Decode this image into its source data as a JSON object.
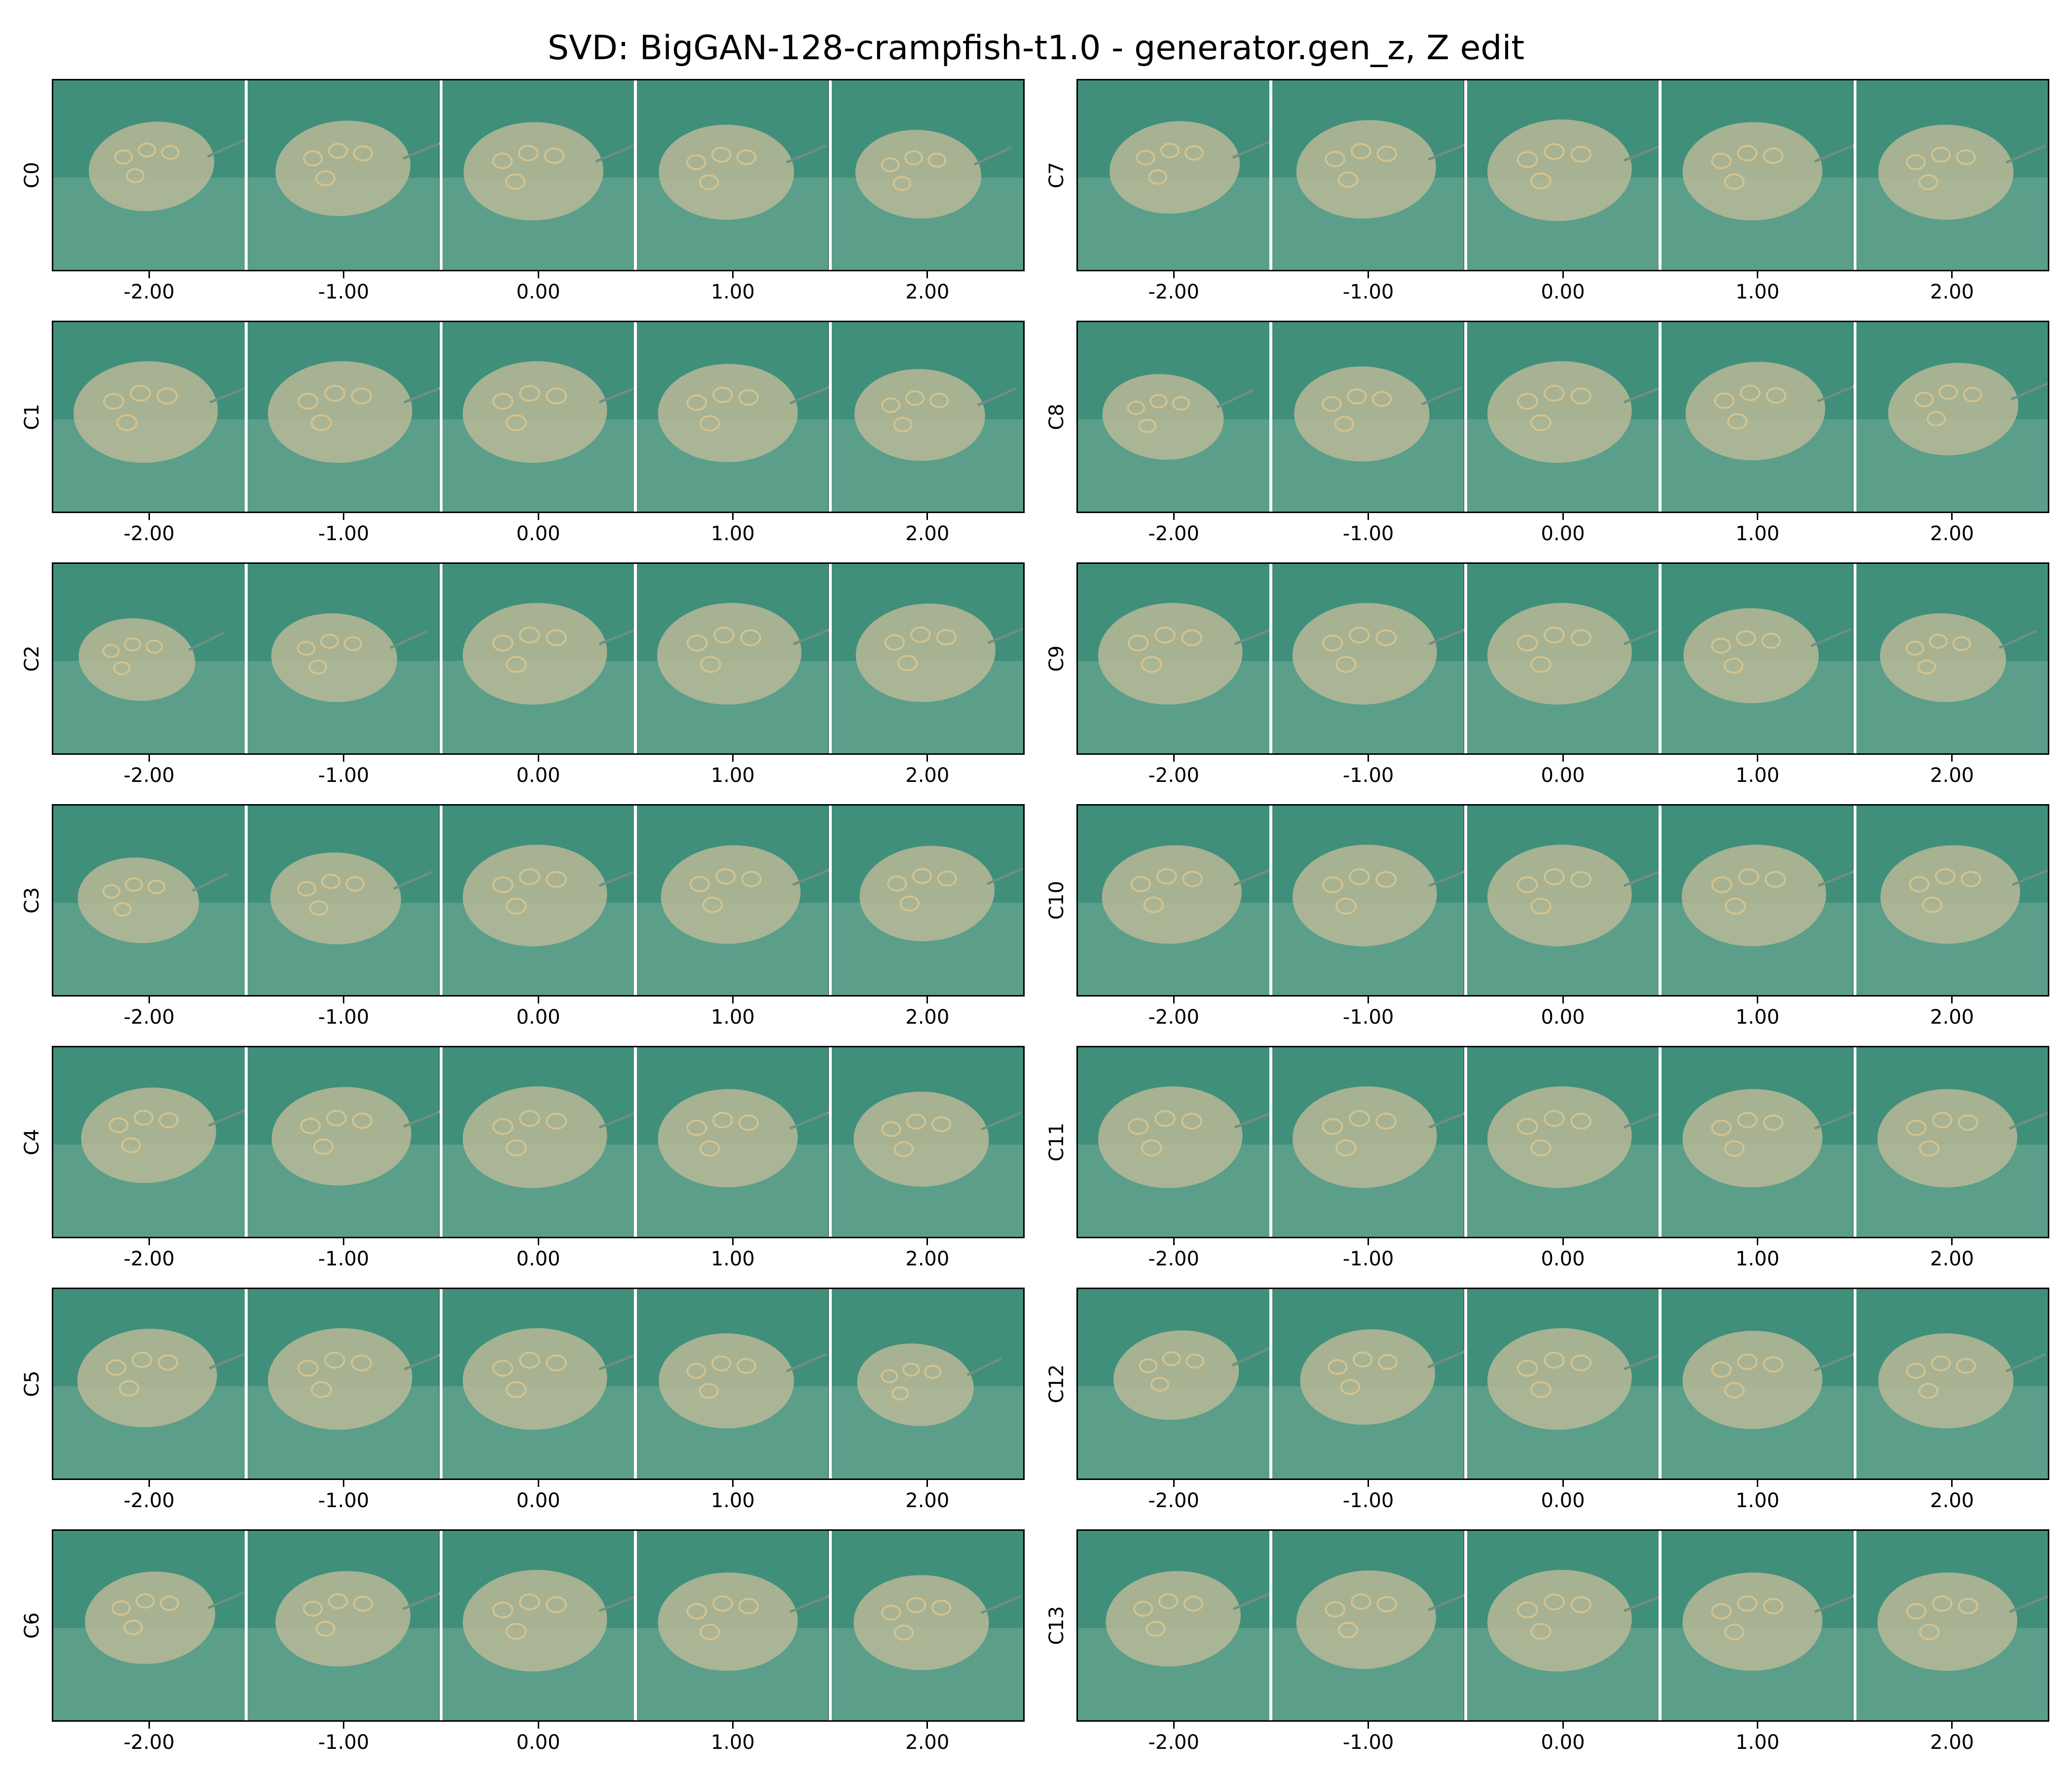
{
  "title": "SVD: BigGAN-128-crampfish-t1.0 - generator.gen_z, Z edit",
  "colors": {
    "water": "#3f8f7b",
    "sand": "#8fb9a6",
    "fish": "#b9b896",
    "spot": "#d8c48e"
  },
  "x_tick_labels": [
    "-2.00",
    "-1.00",
    "0.00",
    "1.00",
    "2.00"
  ],
  "columns": [
    {
      "rows": [
        {
          "label": "C0",
          "variant": [
            0.0,
            0.2,
            0.5,
            0.6,
            0.8
          ]
        },
        {
          "label": "C1",
          "variant": [
            0.4,
            0.4,
            0.4,
            0.5,
            0.7
          ]
        },
        {
          "label": "C2",
          "variant": [
            1.0,
            0.8,
            0.4,
            0.4,
            0.3
          ]
        },
        {
          "label": "C3",
          "variant": [
            0.9,
            0.7,
            0.4,
            0.3,
            0.2
          ]
        },
        {
          "label": "C4",
          "variant": [
            0.2,
            0.3,
            0.4,
            0.5,
            0.6
          ]
        },
        {
          "label": "C5",
          "variant": [
            0.3,
            0.4,
            0.4,
            0.6,
            1.0
          ]
        },
        {
          "label": "C6",
          "variant": [
            0.1,
            0.2,
            0.4,
            0.5,
            0.6
          ]
        }
      ]
    },
    {
      "rows": [
        {
          "label": "C7",
          "variant": [
            0.1,
            0.3,
            0.4,
            0.5,
            0.6
          ]
        },
        {
          "label": "C8",
          "variant": [
            0.9,
            0.6,
            0.4,
            0.3,
            0.1
          ]
        },
        {
          "label": "C9",
          "variant": [
            0.4,
            0.4,
            0.4,
            0.6,
            0.8
          ]
        },
        {
          "label": "C10",
          "variant": [
            0.3,
            0.4,
            0.4,
            0.4,
            0.3
          ]
        },
        {
          "label": "C11",
          "variant": [
            0.4,
            0.4,
            0.4,
            0.5,
            0.5
          ]
        },
        {
          "label": "C12",
          "variant": [
            0.0,
            0.2,
            0.4,
            0.5,
            0.6
          ]
        },
        {
          "label": "C13",
          "variant": [
            0.2,
            0.3,
            0.4,
            0.5,
            0.5
          ]
        }
      ]
    }
  ]
}
